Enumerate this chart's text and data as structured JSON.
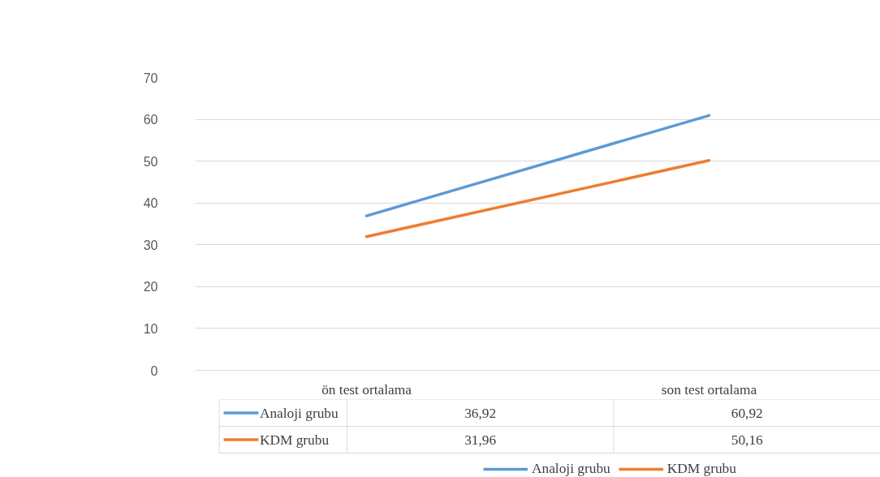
{
  "chart_data": {
    "type": "line",
    "categories": [
      "ön test ortalama",
      "son test ortalama"
    ],
    "series": [
      {
        "name": "Analoji grubu",
        "color": "#5b9bd5",
        "values": [
          36.92,
          60.92
        ],
        "value_labels": [
          "36,92",
          "60,92"
        ]
      },
      {
        "name": "KDM grubu",
        "color": "#ed7d31",
        "values": [
          31.96,
          50.16
        ],
        "value_labels": [
          "31,96",
          "50,16"
        ]
      }
    ],
    "ylim": [
      0,
      70
    ],
    "yticks": [
      0,
      10,
      20,
      30,
      40,
      50,
      60,
      70
    ],
    "grid": "y",
    "legend": "bottom",
    "marker": "none",
    "line_style": "solid"
  }
}
